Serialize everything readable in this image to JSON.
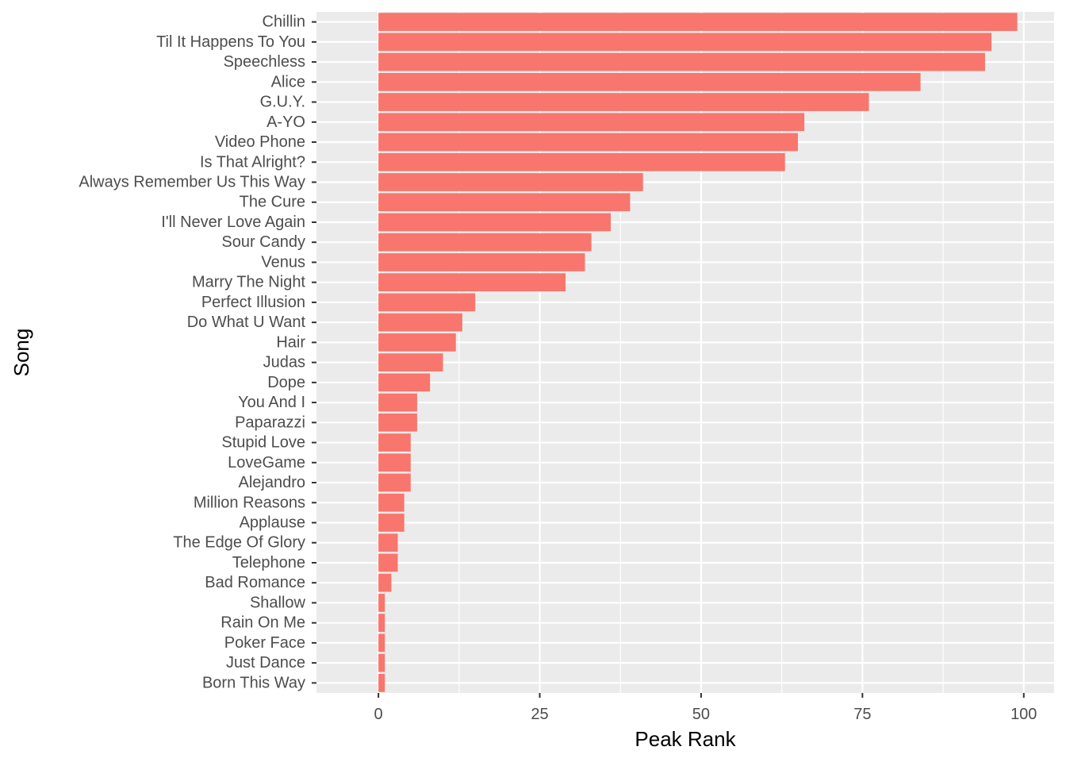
{
  "chart_data": {
    "type": "bar",
    "orientation": "horizontal",
    "xlabel": "Peak Rank",
    "ylabel": "Song",
    "xlim": [
      -9.6,
      104.7
    ],
    "xticks": [
      0,
      25,
      50,
      75,
      100
    ],
    "grid": true,
    "colors": {
      "bar": "#F8766D",
      "panel": "#EBEBEB",
      "grid": "#FFFFFF",
      "tick_text": "#4D4D4D",
      "tick_mark": "#333333"
    },
    "categories": [
      "Chillin",
      "Til It Happens To You",
      "Speechless",
      "Alice",
      "G.U.Y.",
      "A-YO",
      "Video Phone",
      "Is That Alright?",
      "Always Remember Us This Way",
      "The Cure",
      "I'll Never Love Again",
      "Sour Candy",
      "Venus",
      "Marry The Night",
      "Perfect Illusion",
      "Do What U Want",
      "Hair",
      "Judas",
      "Dope",
      "You And I",
      "Paparazzi",
      "Stupid Love",
      "LoveGame",
      "Alejandro",
      "Million Reasons",
      "Applause",
      "The Edge Of Glory",
      "Telephone",
      "Bad Romance",
      "Shallow",
      "Rain On Me",
      "Poker Face",
      "Just Dance",
      "Born This Way"
    ],
    "values": [
      99,
      95,
      94,
      84,
      76,
      66,
      65,
      63,
      41,
      39,
      36,
      33,
      32,
      29,
      15,
      13,
      12,
      10,
      8,
      6,
      6,
      5,
      5,
      5,
      4,
      4,
      3,
      3,
      2,
      1,
      1,
      1,
      1,
      1
    ]
  }
}
